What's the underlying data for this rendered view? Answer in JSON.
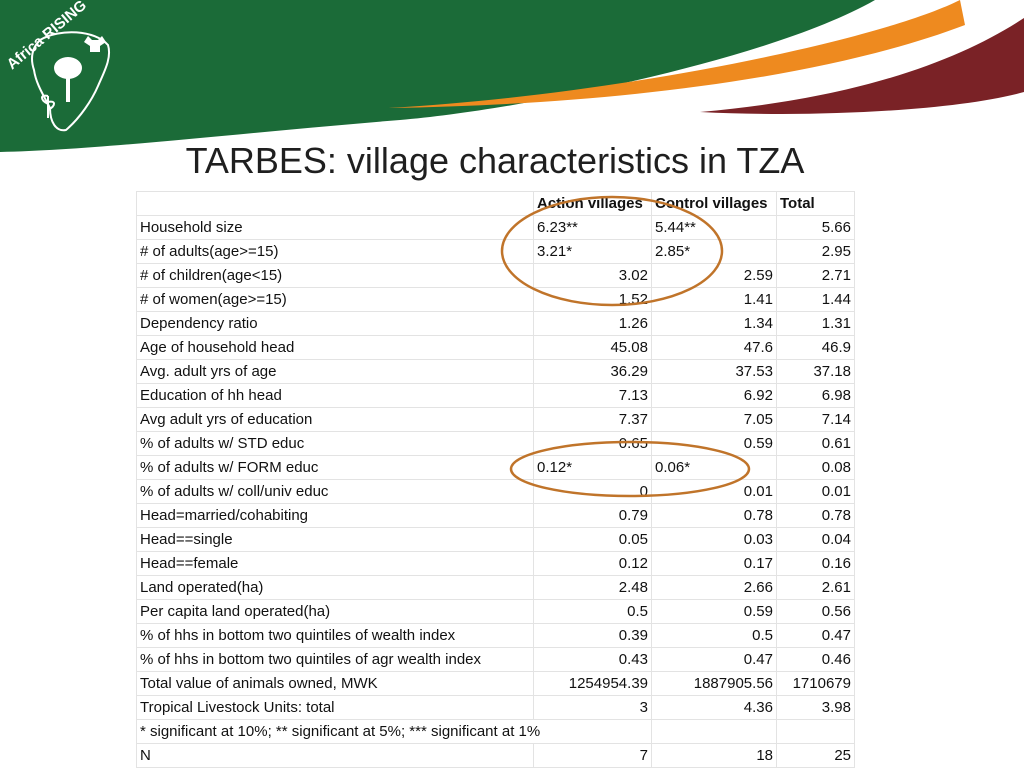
{
  "logo": {
    "text": "Africa RISING"
  },
  "title": "TARBES: village characteristics in TZA",
  "table": {
    "headers": [
      "",
      "Action villages",
      "Control villages",
      "Total"
    ],
    "rows": [
      [
        "Household size",
        "6.23**",
        "5.44**",
        "5.66"
      ],
      [
        "# of adults(age>=15)",
        "3.21*",
        "2.85*",
        "2.95"
      ],
      [
        "# of children(age<15)",
        "3.02",
        "2.59",
        "2.71"
      ],
      [
        "# of women(age>=15)",
        "1.52",
        "1.41",
        "1.44"
      ],
      [
        "Dependency ratio",
        "1.26",
        "1.34",
        "1.31"
      ],
      [
        "Age of household head",
        "45.08",
        "47.6",
        "46.9"
      ],
      [
        "Avg. adult yrs of age",
        "36.29",
        "37.53",
        "37.18"
      ],
      [
        "Education of hh head",
        "7.13",
        "6.92",
        "6.98"
      ],
      [
        "Avg adult yrs of education",
        "7.37",
        "7.05",
        "7.14"
      ],
      [
        "% of adults w/ STD educ",
        "0.65",
        "0.59",
        "0.61"
      ],
      [
        "% of adults w/ FORM educ",
        "0.12*",
        "0.06*",
        "0.08"
      ],
      [
        "% of adults w/ coll/univ educ",
        "0",
        "0.01",
        "0.01"
      ],
      [
        "Head=married/cohabiting",
        "0.79",
        "0.78",
        "0.78"
      ],
      [
        "Head==single",
        "0.05",
        "0.03",
        "0.04"
      ],
      [
        "Head==female",
        "0.12",
        "0.17",
        "0.16"
      ],
      [
        "Land operated(ha)",
        "2.48",
        "2.66",
        "2.61"
      ],
      [
        "Per capita land operated(ha)",
        "0.5",
        "0.59",
        "0.56"
      ],
      [
        "% of hhs in bottom two quintiles of wealth index",
        "0.39",
        "0.5",
        "0.47"
      ],
      [
        "% of hhs in bottom two quintiles of agr wealth index",
        "0.43",
        "0.47",
        "0.46"
      ],
      [
        "Total value of animals owned, MWK",
        "1254954.39",
        "1887905.56",
        "1710679"
      ],
      [
        "Tropical Livestock Units: total",
        "3",
        "4.36",
        "3.98"
      ]
    ],
    "footnote": "* significant at 10%; ** significant at 5%; *** significant at 1%",
    "n_row": [
      "N",
      "7",
      "18",
      "25"
    ]
  },
  "colors": {
    "green": "#1b6b38",
    "orange": "#ee8a1f",
    "maroon": "#7a2226",
    "circle": "#c0742a"
  }
}
